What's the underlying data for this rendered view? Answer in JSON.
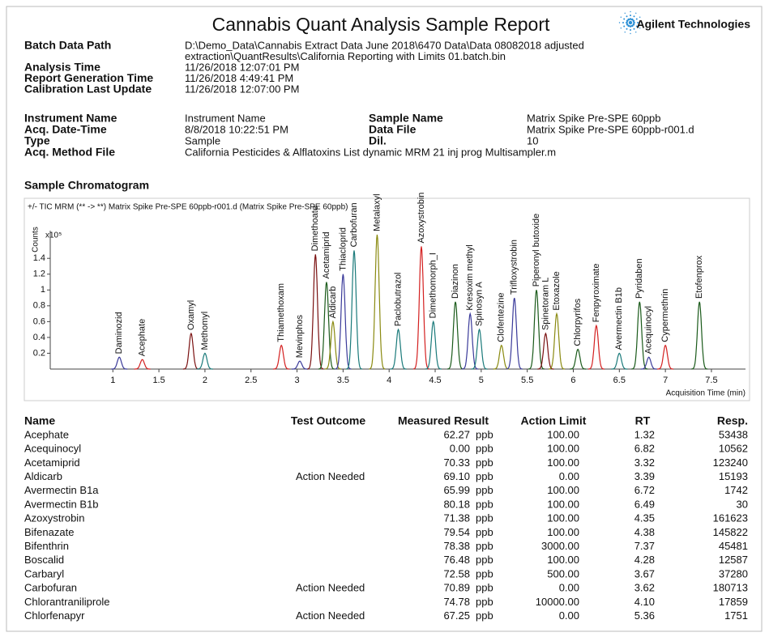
{
  "header": {
    "title": "Cannabis Quant Analysis Sample Report",
    "company": "Agilent Technologies"
  },
  "batch_fields": [
    {
      "label": "Batch Data Path",
      "lines": [
        "D:\\Demo_Data\\Cannabis Extract Data June 2018\\6470 Data\\Data 08082018 adjusted",
        "extraction\\QuantResults\\California Reporting with Limits 01.batch.bin"
      ]
    },
    {
      "label": "Analysis Time",
      "lines": [
        "11/26/2018 12:07:01 PM"
      ]
    },
    {
      "label": "Report Generation Time",
      "lines": [
        "11/26/2018 4:49:41 PM"
      ]
    },
    {
      "label": "Calibration Last Update",
      "lines": [
        "11/26/2018 12:07:00 PM"
      ]
    }
  ],
  "sample_fields_left": [
    {
      "label": "Instrument Name",
      "value": "Instrument Name"
    },
    {
      "label": "Acq. Date-Time",
      "value": "8/8/2018 10:22:51 PM"
    },
    {
      "label": "Type",
      "value": "Sample"
    },
    {
      "label": "Acq. Method File",
      "value": "California Pesticides & Alflatoxins List dynamic MRM 21 inj prog Multisampler.m"
    }
  ],
  "sample_fields_right": [
    {
      "label": "Sample Name",
      "value": "Matrix Spike Pre-SPE 60ppb"
    },
    {
      "label": "Data File",
      "value": "Matrix Spike Pre-SPE 60ppb-r001.d"
    },
    {
      "label": "Dil.",
      "value": "10"
    }
  ],
  "chromatogram": {
    "heading": "Sample Chromatogram",
    "subtitle": "+/- TIC MRM (** -> **) Matrix Spike Pre-SPE 60ppb-r001.d (Matrix Spike Pre-SPE 60ppb)",
    "y_label": "Counts",
    "y_multiplier": "x10⁵",
    "x_label": "Acquisition Time (min)",
    "xlim": [
      0.32,
      7.87
    ],
    "xticks": [
      1,
      1.5,
      2,
      2.5,
      3,
      3.5,
      4,
      4.5,
      5,
      5.5,
      6,
      6.5,
      7,
      7.5
    ],
    "ylim": [
      0,
      1.75
    ],
    "yticks": [
      0.2,
      0.4,
      0.6,
      0.8,
      1,
      1.2,
      1.4
    ],
    "peaks": [
      {
        "label": "Daminozid",
        "rt": 1.07,
        "height": 0.15,
        "color": "#3a3a9a"
      },
      {
        "label": "Acephate",
        "rt": 1.32,
        "height": 0.12,
        "color": "#d42020"
      },
      {
        "label": "Oxamyl",
        "rt": 1.85,
        "height": 0.45,
        "color": "#7a1010"
      },
      {
        "label": "Methomyl",
        "rt": 2.0,
        "height": 0.2,
        "color": "#1a7a7a"
      },
      {
        "label": "Thiamethoxam",
        "rt": 2.83,
        "height": 0.3,
        "color": "#d42020"
      },
      {
        "label": "Mevinphos",
        "rt": 3.03,
        "height": 0.1,
        "color": "#3a3a9a"
      },
      {
        "label": "Dimethoate",
        "rt": 3.2,
        "height": 1.45,
        "color": "#7a1010"
      },
      {
        "label": "Acetamiprid",
        "rt": 3.32,
        "height": 1.1,
        "color": "#1a5a1a"
      },
      {
        "label": "Aldicarb",
        "rt": 3.39,
        "height": 0.6,
        "color": "#8a8a10"
      },
      {
        "label": "Thiacloprid",
        "rt": 3.5,
        "height": 1.2,
        "color": "#3a3a9a"
      },
      {
        "label": "Carbofuran",
        "rt": 3.62,
        "height": 1.5,
        "color": "#1a7a7a"
      },
      {
        "label": "Metalaxyl",
        "rt": 3.87,
        "height": 1.7,
        "color": "#8a8a10"
      },
      {
        "label": "Paclobutrazol",
        "rt": 4.1,
        "height": 0.5,
        "color": "#1a7a7a"
      },
      {
        "label": "Azoxystrobin",
        "rt": 4.35,
        "height": 1.55,
        "color": "#d42020"
      },
      {
        "label": "Dimethomorph_I",
        "rt": 4.48,
        "height": 0.6,
        "color": "#1a7a7a"
      },
      {
        "label": "Diazinon",
        "rt": 4.72,
        "height": 0.85,
        "color": "#1a5a1a"
      },
      {
        "label": "Kresoxim methyl",
        "rt": 4.88,
        "height": 0.7,
        "color": "#3a3a9a"
      },
      {
        "label": "Spinosyn A",
        "rt": 4.98,
        "height": 0.5,
        "color": "#1a7a7a"
      },
      {
        "label": "Clofentezine",
        "rt": 5.22,
        "height": 0.3,
        "color": "#8a8a10"
      },
      {
        "label": "Trifloxystrobin",
        "rt": 5.36,
        "height": 0.9,
        "color": "#3a3a9a"
      },
      {
        "label": "Piperonyl butoxide",
        "rt": 5.6,
        "height": 1.0,
        "color": "#1a5a1a"
      },
      {
        "label": "Spinetoram L",
        "rt": 5.7,
        "height": 0.45,
        "color": "#7a1010"
      },
      {
        "label": "Etoxazole",
        "rt": 5.82,
        "height": 0.7,
        "color": "#8a8a10"
      },
      {
        "label": "Chlorpyrifos",
        "rt": 6.05,
        "height": 0.25,
        "color": "#1a5a1a"
      },
      {
        "label": "Fenpyroximate",
        "rt": 6.25,
        "height": 0.55,
        "color": "#d42020"
      },
      {
        "label": "Avermectin B1b",
        "rt": 6.5,
        "height": 0.2,
        "color": "#1a7a7a"
      },
      {
        "label": "Pyridaben",
        "rt": 6.72,
        "height": 0.85,
        "color": "#1a5a1a"
      },
      {
        "label": "Acequinocyl",
        "rt": 6.82,
        "height": 0.15,
        "color": "#3a3a9a"
      },
      {
        "label": "Cypermethrin",
        "rt": 7.0,
        "height": 0.3,
        "color": "#d42020"
      },
      {
        "label": "Etofenprox",
        "rt": 7.37,
        "height": 0.85,
        "color": "#1a5a1a"
      }
    ]
  },
  "table": {
    "columns": [
      "Name",
      "Test Outcome",
      "Measured Result",
      "Action Limit",
      "RT",
      "Resp."
    ],
    "rows": [
      {
        "name": "Acephate",
        "result": "62.27",
        "unit": "ppb",
        "limit": "100.00",
        "rt": "1.32",
        "resp": 53438
      },
      {
        "name": "Acequinocyl",
        "result": "0.00",
        "unit": "ppb",
        "limit": "100.00",
        "rt": "6.82",
        "resp": 10562
      },
      {
        "name": "Acetamiprid",
        "result": "70.33",
        "unit": "ppb",
        "limit": "100.00",
        "rt": "3.32",
        "resp": 123240
      },
      {
        "name": "Aldicarb",
        "outcome": "Action Needed",
        "result": "69.10",
        "unit": "ppb",
        "limit": "0.00",
        "rt": "3.39",
        "resp": 15193
      },
      {
        "name": "Avermectin B1a",
        "result": "65.99",
        "unit": "ppb",
        "limit": "100.00",
        "rt": "6.72",
        "resp": 1742
      },
      {
        "name": "Avermectin B1b",
        "result": "80.18",
        "unit": "ppb",
        "limit": "100.00",
        "rt": "6.49",
        "resp": 30
      },
      {
        "name": "Azoxystrobin",
        "result": "71.38",
        "unit": "ppb",
        "limit": "100.00",
        "rt": "4.35",
        "resp": 161623
      },
      {
        "name": "Bifenazate",
        "result": "79.54",
        "unit": "ppb",
        "limit": "100.00",
        "rt": "4.38",
        "resp": 145822
      },
      {
        "name": "Bifenthrin",
        "result": "78.38",
        "unit": "ppb",
        "limit": "3000.00",
        "rt": "7.37",
        "resp": 45481
      },
      {
        "name": "Boscalid",
        "result": "76.48",
        "unit": "ppb",
        "limit": "100.00",
        "rt": "4.28",
        "resp": 12587
      },
      {
        "name": "Carbaryl",
        "result": "72.58",
        "unit": "ppb",
        "limit": "500.00",
        "rt": "3.67",
        "resp": 37280
      },
      {
        "name": "Carbofuran",
        "outcome": "Action Needed",
        "result": "70.89",
        "unit": "ppb",
        "limit": "0.00",
        "rt": "3.62",
        "resp": 180713
      },
      {
        "name": "Chlorantraniliprole",
        "result": "74.78",
        "unit": "ppb",
        "limit": "10000.00",
        "rt": "4.10",
        "resp": 17859
      },
      {
        "name": "Chlorfenapyr",
        "outcome": "Action Needed",
        "result": "67.25",
        "unit": "ppb",
        "limit": "0.00",
        "rt": "5.36",
        "resp": 1751
      }
    ]
  }
}
